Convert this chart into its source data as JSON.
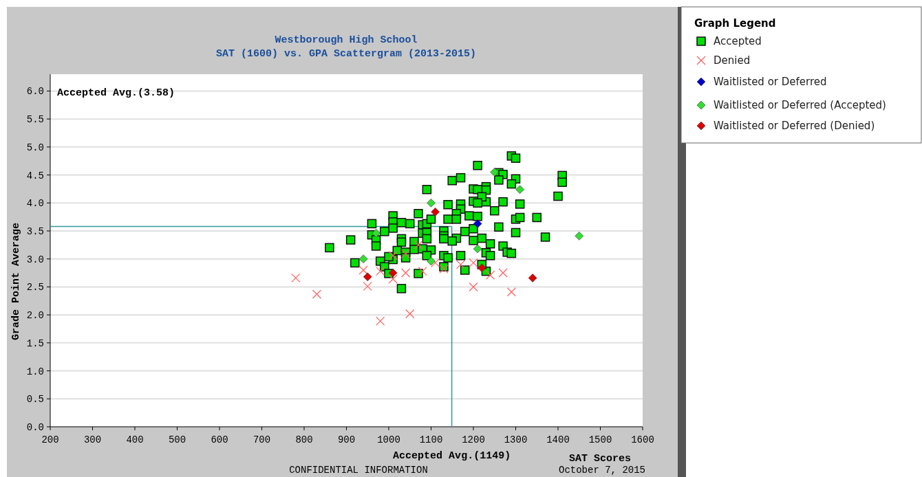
{
  "chart_data": {
    "type": "scatter",
    "title": "Westborough High School",
    "subtitle": "SAT (1600) vs. GPA Scattergram (2013-2015)",
    "xlabel": "SAT Scores",
    "ylabel": "Grade Point Average",
    "legend_title": "Graph Legend",
    "legend": "right",
    "grid": "y",
    "xlim": [
      200,
      1600
    ],
    "xticks": [
      200,
      300,
      400,
      500,
      600,
      700,
      800,
      900,
      1000,
      1100,
      1200,
      1300,
      1400,
      1500,
      1600
    ],
    "ylim": [
      0,
      6.3
    ],
    "yticks": [
      {
        "value": 0,
        "label": "0.0"
      },
      0.5,
      {
        "value": 1,
        "label": "1.0"
      },
      1.5,
      {
        "value": 2,
        "label": "2.0"
      },
      2.5,
      {
        "value": 3,
        "label": "3.0"
      },
      3.5,
      {
        "value": 4,
        "label": "4.0"
      },
      4.5,
      {
        "value": 5,
        "label": "5.0"
      },
      5.5,
      {
        "value": 6,
        "label": "6.0"
      }
    ],
    "ref_lines": [
      {
        "axis": "y",
        "value": 3.58,
        "color": "#339999"
      },
      {
        "axis": "x",
        "value": 1149,
        "label": "Accepted Avg.(1149)",
        "color": "#339999"
      }
    ],
    "annotations": [
      "Accepted Avg.(3.58)",
      "CONFIDENTIAL INFORMATION",
      "October 7, 2015"
    ],
    "series": [
      {
        "name": "Accepted",
        "color": "#00e000",
        "marker": "square",
        "x": [
          1290,
          1300,
          1260,
          1270,
          1260,
          1300,
          1290,
          1410,
          1410,
          1230,
          1230,
          1400,
          1230,
          1270,
          1310,
          1250,
          1300,
          1310,
          1350,
          1260,
          1300,
          1370,
          1220,
          1240,
          1270,
          1230,
          1240,
          1280,
          1290,
          1230,
          1210,
          1150,
          1170,
          1090,
          1200,
          1210,
          1220,
          1200,
          1210,
          1140,
          1170,
          1170,
          1070,
          1140,
          1160,
          1160,
          1190,
          1210,
          1010,
          1010,
          1010,
          1030,
          960,
          1050,
          1080,
          1090,
          1100,
          990,
          960,
          970,
          970,
          910,
          860,
          1030,
          1030,
          1060,
          1080,
          1090,
          1090,
          1130,
          1130,
          1130,
          1180,
          1200,
          1160,
          1150,
          1200,
          1080,
          1100,
          1090,
          1060,
          1020,
          1040,
          1040,
          1010,
          1000,
          980,
          1130,
          1140,
          1170,
          920,
          990,
          1000,
          1130,
          1180,
          1220,
          1070,
          1030
        ],
        "values": [
          4.84,
          4.8,
          4.54,
          4.51,
          4.41,
          4.43,
          4.34,
          4.49,
          4.37,
          4.29,
          4.23,
          4.12,
          4.02,
          4.02,
          3.98,
          3.86,
          3.71,
          3.74,
          3.74,
          3.57,
          3.47,
          3.39,
          3.37,
          3.27,
          3.23,
          3.11,
          3.06,
          3.12,
          3.1,
          2.78,
          4.67,
          4.4,
          4.45,
          4.24,
          4.25,
          4.24,
          4.11,
          4.03,
          4,
          3.97,
          3.98,
          3.89,
          3.81,
          3.71,
          3.81,
          3.71,
          3.77,
          3.76,
          3.77,
          3.66,
          3.55,
          3.65,
          3.63,
          3.63,
          3.61,
          3.63,
          3.71,
          3.49,
          3.43,
          3.34,
          3.23,
          3.34,
          3.2,
          3.36,
          3.3,
          3.31,
          3.46,
          3.47,
          3.36,
          3.5,
          3.41,
          3.36,
          3.49,
          3.54,
          3.37,
          3.32,
          3.33,
          3.18,
          3.16,
          3.06,
          3.17,
          3.15,
          3.12,
          3.02,
          2.99,
          3.04,
          2.96,
          3.06,
          3.02,
          3.06,
          2.93,
          2.86,
          2.74,
          2.86,
          2.8,
          2.9,
          2.74,
          2.47
        ]
      },
      {
        "name": "Denied",
        "color": "#ff6666",
        "marker": "cross",
        "x": [
          1240,
          1270,
          1290,
          1070,
          1040,
          1010,
          940,
          980,
          1010,
          1040,
          1080,
          1110,
          1130,
          1170,
          1200,
          950,
          1200,
          780,
          830,
          1050,
          980
        ],
        "values": [
          2.71,
          2.75,
          2.41,
          3.25,
          3.09,
          3.06,
          2.8,
          2.78,
          2.64,
          2.75,
          2.78,
          2.93,
          2.82,
          2.9,
          2.93,
          2.51,
          2.5,
          2.66,
          2.37,
          2.02,
          1.89
        ]
      },
      {
        "name": "Waitlisted or Deferred",
        "color": "#0000cc",
        "marker": "diamond",
        "x": [
          1210
        ],
        "values": [
          3.63
        ]
      },
      {
        "name": "Waitlisted or Deferred (Accepted)",
        "color": "#33dd33",
        "marker": "diamond",
        "x": [
          1250,
          1310,
          1450,
          1100,
          970,
          940,
          1100,
          1210
        ],
        "values": [
          4.55,
          4.24,
          3.41,
          4,
          3.46,
          3,
          2.96,
          3.18
        ]
      },
      {
        "name": "Waitlisted or Deferred (Denied)",
        "color": "#dd0000",
        "marker": "diamond",
        "x": [
          1340,
          1220,
          1110,
          950,
          1010
        ],
        "values": [
          2.66,
          2.84,
          3.84,
          2.68,
          2.75
        ]
      }
    ]
  }
}
